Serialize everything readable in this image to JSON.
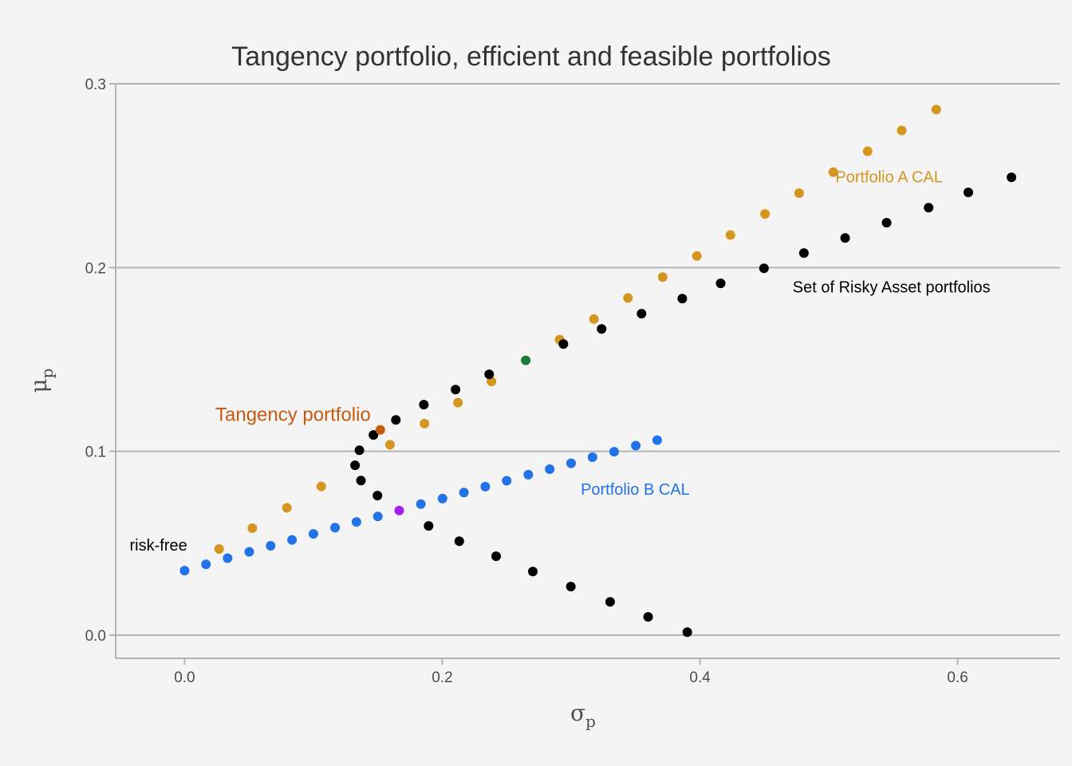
{
  "chart_data": {
    "type": "scatter",
    "title": "Tangency portfolio, efficient and feasible portfolios",
    "xlabel": {
      "main": "σ",
      "sub": "p"
    },
    "ylabel": {
      "main": "μ",
      "sub": "p"
    },
    "xlim": [
      -0.0535,
      0.6795
    ],
    "ylim": [
      -0.0126,
      0.3
    ],
    "x_ticks": [
      "0.0",
      "0.2",
      "0.4",
      "0.6"
    ],
    "y_ticks": [
      "0.0",
      "0.1",
      "0.2",
      "0.3"
    ],
    "grid": "horizontal-major",
    "colors": {
      "background": "#f4f4f4",
      "grid": "#b3b3b3",
      "risky": "#000000",
      "portfolio_a": "#d4961e",
      "portfolio_b": "#2272e8",
      "tangency": "#c85a0f",
      "highlight_green": "#1a7a3a",
      "highlight_purple": "#a020f0"
    },
    "series": [
      {
        "key": "portfolio_a",
        "x": [
          0.0268,
          0.0526,
          0.0794,
          0.1061,
          0.1594,
          0.1862,
          0.2122,
          0.2382,
          0.2911,
          0.3177,
          0.3441,
          0.3711,
          0.3976,
          0.4237,
          0.4505,
          0.477,
          0.5035,
          0.5302,
          0.5566,
          0.5834
        ],
        "y": [
          0.0469,
          0.0582,
          0.0693,
          0.0809,
          0.1036,
          0.1151,
          0.1265,
          0.138,
          0.1608,
          0.172,
          0.1835,
          0.1948,
          0.2063,
          0.2177,
          0.2292,
          0.2405,
          0.2519,
          0.2633,
          0.2746,
          0.286
        ]
      },
      {
        "key": "portfolio_b",
        "x": [
          0.0,
          0.0166,
          0.0334,
          0.0502,
          0.0668,
          0.0834,
          0.1,
          0.1168,
          0.1334,
          0.15,
          0.1834,
          0.2002,
          0.2168,
          0.2334,
          0.25,
          0.2668,
          0.2834,
          0.3,
          0.3166,
          0.3334,
          0.3502,
          0.3668
        ],
        "y": [
          0.0351,
          0.0385,
          0.0419,
          0.0453,
          0.0486,
          0.0518,
          0.0551,
          0.0585,
          0.0616,
          0.0646,
          0.0713,
          0.0743,
          0.0776,
          0.0808,
          0.084,
          0.0873,
          0.0903,
          0.0935,
          0.0968,
          0.0998,
          0.1031,
          0.1061
        ]
      },
      {
        "key": "risky",
        "x": [
          0.3902,
          0.3598,
          0.3303,
          0.2998,
          0.2703,
          0.2418,
          0.2132,
          0.1894,
          0.1497,
          0.1369,
          0.1323,
          0.1357,
          0.1466,
          0.164,
          0.1857,
          0.2103,
          0.2364,
          0.294,
          0.3237,
          0.3547,
          0.3863,
          0.4161,
          0.4497,
          0.4807,
          0.5127,
          0.5449,
          0.5775,
          0.6083,
          0.6418
        ],
        "y": [
          0.0016,
          0.0099,
          0.0181,
          0.0264,
          0.0346,
          0.0429,
          0.0511,
          0.0594,
          0.0759,
          0.0841,
          0.0924,
          0.1006,
          0.1089,
          0.1171,
          0.1254,
          0.1336,
          0.1419,
          0.1584,
          0.1666,
          0.1749,
          0.1831,
          0.1914,
          0.1996,
          0.2079,
          0.2161,
          0.2244,
          0.2326,
          0.2409,
          0.2491
        ]
      },
      {
        "key": "tangency",
        "x": [
          0.1519
        ],
        "y": [
          0.1117
        ]
      },
      {
        "key": "highlight_green",
        "x": [
          0.2648
        ],
        "y": [
          0.1495
        ]
      },
      {
        "key": "highlight_purple",
        "x": [
          0.1666
        ],
        "y": [
          0.0678
        ]
      }
    ],
    "annotations": [
      {
        "key": "a_cal",
        "text": "Portfolio A CAL",
        "x": 0.5468,
        "y": 0.2495,
        "color": "#d4961e"
      },
      {
        "key": "b_cal",
        "text": "Portfolio B CAL",
        "x": 0.3498,
        "y": 0.0794,
        "color": "#2272e8"
      },
      {
        "key": "risky_set",
        "text": "Set of Risky Asset portfolios",
        "x": 0.5487,
        "y": 0.1896,
        "color": "#000000"
      },
      {
        "key": "tangency",
        "text": "Tangency portfolio",
        "x": 0.0842,
        "y": 0.1196,
        "color": "#c85a0f"
      },
      {
        "key": "risk_free",
        "text": "risk-free",
        "x": -0.0203,
        "y": 0.0491,
        "color": "#000000"
      }
    ]
  }
}
